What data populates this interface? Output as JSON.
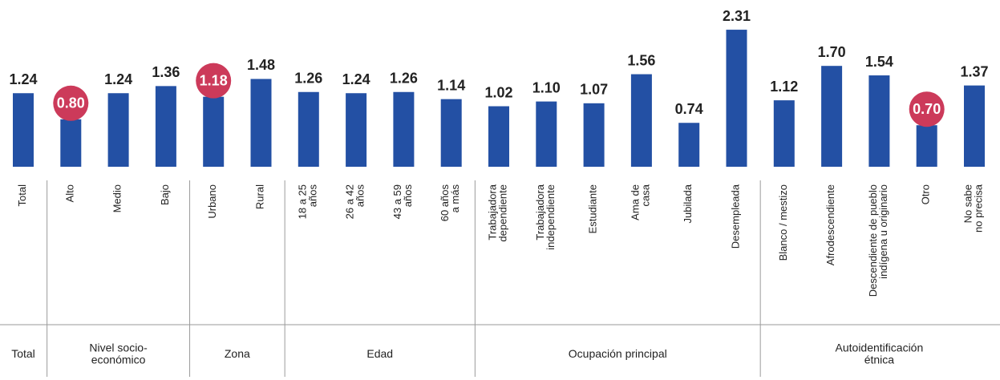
{
  "chart_data": {
    "type": "bar",
    "color": "#2350a4",
    "highlight_color": "#cc3a5a",
    "groups": [
      {
        "label": "Total",
        "categories": [
          "Total"
        ],
        "values": [
          1.24
        ],
        "label_styles": [
          "plain"
        ]
      },
      {
        "label": "Nivel socio-\neconómico",
        "categories": [
          "Alto",
          "Medio",
          "Bajo"
        ],
        "values": [
          0.8,
          1.24,
          1.36
        ],
        "label_styles": [
          "circle",
          "plain",
          "plain"
        ]
      },
      {
        "label": "Zona",
        "categories": [
          "Urbano",
          "Rural"
        ],
        "values": [
          1.18,
          1.48
        ],
        "label_styles": [
          "circle",
          "plain"
        ]
      },
      {
        "label": "Edad",
        "categories": [
          "18 a 25\naños",
          "26 a 42\naños",
          "43 a 59\naños",
          "60 años\na más"
        ],
        "values": [
          1.26,
          1.24,
          1.26,
          1.14
        ],
        "label_styles": [
          "plain",
          "plain",
          "plain",
          "plain"
        ]
      },
      {
        "label": "Ocupación principal",
        "categories": [
          "Trabajadora\ndependiente",
          "Trabajadora\nindependiente",
          "Estudiante",
          "Ama de\ncasa",
          "Jubilada",
          "Desempleada"
        ],
        "values": [
          1.02,
          1.1,
          1.07,
          1.56,
          0.74,
          2.31
        ],
        "label_styles": [
          "plain",
          "plain",
          "plain",
          "plain",
          "plain",
          "plain"
        ]
      },
      {
        "label": "Autoidentificación\nétnica",
        "categories": [
          "Blanco / mestizo",
          "Afrodescendiente",
          "Descendiente de pueblo\nindígena u originario",
          "Otro",
          "No sabe\nno precisa"
        ],
        "values": [
          1.12,
          1.7,
          1.54,
          0.7,
          1.37
        ],
        "label_styles": [
          "plain",
          "plain",
          "plain",
          "circle",
          "plain"
        ]
      }
    ]
  }
}
